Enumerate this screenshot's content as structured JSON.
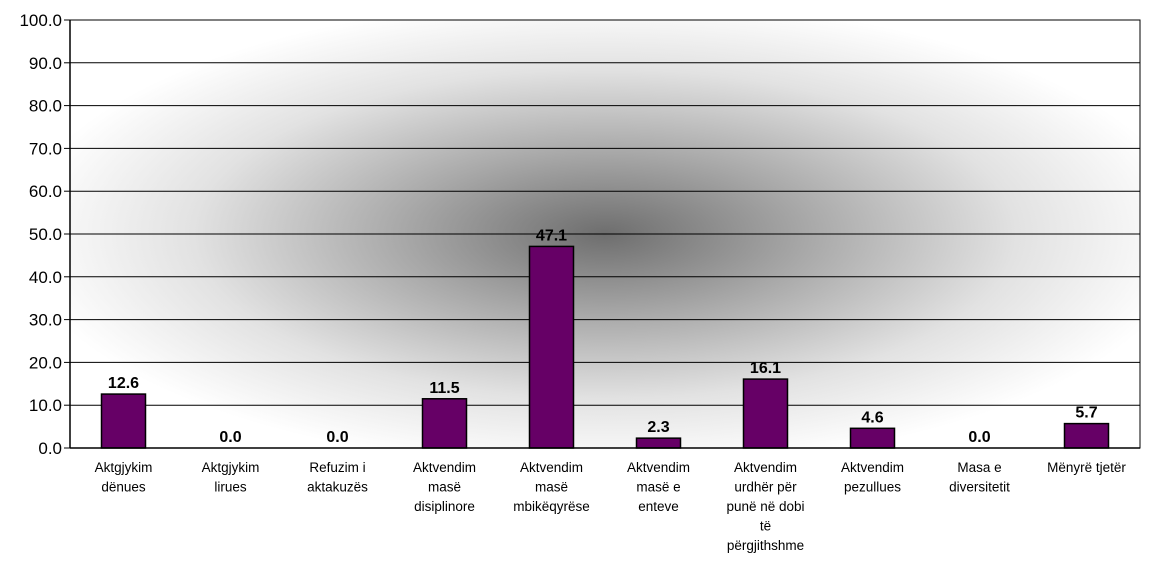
{
  "chart_data": {
    "type": "bar",
    "categories": [
      [
        "Aktgjykim",
        "dënues"
      ],
      [
        "Aktgjykim",
        "lirues"
      ],
      [
        "Refuzim i",
        "aktakuzës"
      ],
      [
        "Aktvendim",
        "masë",
        "disiplinore"
      ],
      [
        "Aktvendim",
        "masë",
        "mbikëqyrëse"
      ],
      [
        "Aktvendim",
        "masë e",
        "enteve"
      ],
      [
        "Aktvendim",
        "urdhër për",
        "punë në dobi",
        "të",
        "përgjithshme"
      ],
      [
        "Aktvendim",
        "pezullues"
      ],
      [
        "Masa e",
        "diversitetit"
      ],
      [
        "Mënyrë tjetër"
      ]
    ],
    "values": [
      12.6,
      0.0,
      0.0,
      11.5,
      47.1,
      2.3,
      16.1,
      4.6,
      0.0,
      5.7
    ],
    "data_labels": [
      "12.6",
      "0.0",
      "0.0",
      "11.5",
      "47.1",
      "2.3",
      "16.1",
      "4.6",
      "0.0",
      "5.7"
    ],
    "y_ticks": [
      "0.0",
      "10.0",
      "20.0",
      "30.0",
      "40.0",
      "50.0",
      "60.0",
      "70.0",
      "80.0",
      "90.0",
      "100.0"
    ],
    "ylim": [
      0,
      100
    ],
    "grid": true,
    "bar_color": "#660066",
    "bar_outline": "#000000"
  }
}
